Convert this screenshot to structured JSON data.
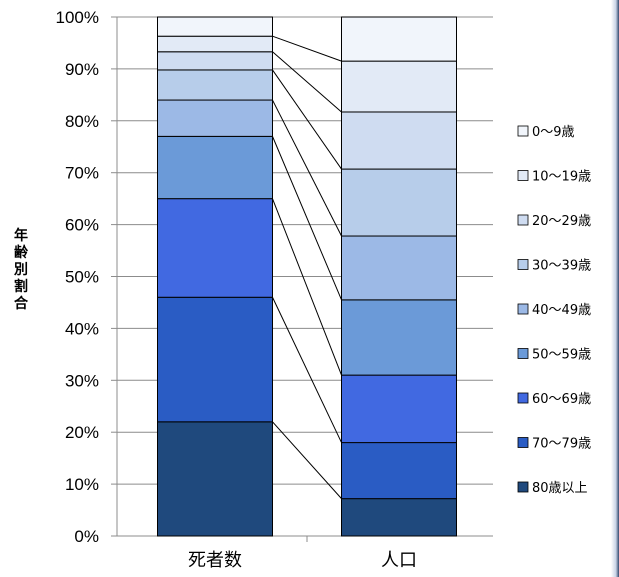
{
  "chart_data": {
    "type": "bar",
    "stacked": true,
    "normalized": true,
    "ylabel": "年齢別割合",
    "xlabel": "",
    "ylim": [
      0,
      100
    ],
    "yticks": [
      "0%",
      "10%",
      "20%",
      "30%",
      "40%",
      "50%",
      "60%",
      "70%",
      "80%",
      "90%",
      "100%"
    ],
    "categories": [
      "死者数",
      "人口"
    ],
    "legend_position": "right",
    "series": [
      {
        "name": "80歳以上",
        "color": "#1f497d",
        "values": [
          22.0,
          7.2
        ]
      },
      {
        "name": "70〜79歳",
        "color": "#2a5cc4",
        "values": [
          24.0,
          10.8
        ]
      },
      {
        "name": "60〜69歳",
        "color": "#4169e1",
        "values": [
          19.0,
          13.0
        ]
      },
      {
        "name": "50〜59歳",
        "color": "#6b9ad8",
        "values": [
          12.0,
          14.5
        ]
      },
      {
        "name": "40〜49歳",
        "color": "#9cb9e6",
        "values": [
          7.0,
          12.3
        ]
      },
      {
        "name": "30〜39歳",
        "color": "#b7cdea",
        "values": [
          5.8,
          12.9
        ]
      },
      {
        "name": "20〜29歳",
        "color": "#cfdcf1",
        "values": [
          3.5,
          11.0
        ]
      },
      {
        "name": "10〜19歳",
        "color": "#e2eaf6",
        "values": [
          3.0,
          9.8
        ]
      },
      {
        "name": "0〜9歳",
        "color": "#f1f5fb",
        "values": [
          3.7,
          8.5
        ]
      }
    ]
  }
}
